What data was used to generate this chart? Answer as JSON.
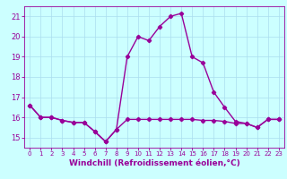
{
  "xlabel": "Windchill (Refroidissement éolien,°C)",
  "hours": [
    0,
    1,
    2,
    3,
    4,
    5,
    6,
    7,
    8,
    9,
    10,
    11,
    12,
    13,
    14,
    15,
    16,
    17,
    18,
    19,
    20,
    21,
    22,
    23
  ],
  "temp": [
    16.6,
    16.0,
    16.0,
    15.85,
    15.75,
    15.75,
    15.3,
    14.8,
    15.4,
    19.0,
    20.0,
    19.8,
    20.5,
    21.0,
    21.15,
    19.0,
    18.7,
    17.25,
    16.5,
    15.8,
    15.7,
    15.5,
    15.9,
    15.9
  ],
  "windchill": [
    16.6,
    16.0,
    16.0,
    15.85,
    15.75,
    15.75,
    15.3,
    14.8,
    15.4,
    15.9,
    15.9,
    15.9,
    15.9,
    15.9,
    15.9,
    15.9,
    15.85,
    15.85,
    15.8,
    15.7,
    15.7,
    15.5,
    15.9,
    15.9
  ],
  "line_color": "#990099",
  "bg_color": "#ccffff",
  "grid_color": "#aaddee",
  "ylim": [
    14.5,
    21.5
  ],
  "xlim": [
    -0.5,
    23.5
  ],
  "yticks": [
    15,
    16,
    17,
    18,
    19,
    20,
    21
  ],
  "xticks": [
    0,
    1,
    2,
    3,
    4,
    5,
    6,
    7,
    8,
    9,
    10,
    11,
    12,
    13,
    14,
    15,
    16,
    17,
    18,
    19,
    20,
    21,
    22,
    23
  ],
  "marker": "D",
  "markersize": 2.2,
  "linewidth": 1.0,
  "tick_fontsize": 6.0,
  "xlabel_fontsize": 6.5
}
